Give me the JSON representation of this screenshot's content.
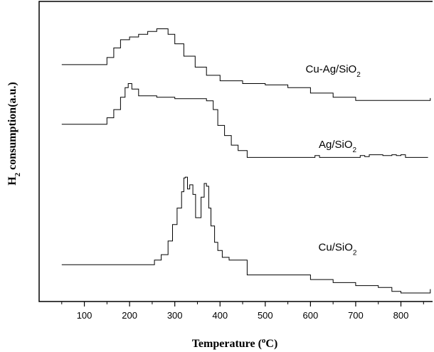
{
  "chart_data": {
    "type": "line",
    "title": "",
    "xlabel": {
      "base": "Temperature (",
      "superscript": "o",
      "tail": "C)"
    },
    "ylabel": {
      "base": "H",
      "subscript": "2",
      "tail": " consumption(a.u.)"
    },
    "xlim": [
      0,
      870
    ],
    "xticks": [
      100,
      200,
      300,
      400,
      500,
      600,
      700,
      800
    ],
    "y_units": "arbitrary",
    "ylim": [
      0,
      100
    ],
    "grid": false,
    "legend": "none",
    "colors": {
      "line": "#000000",
      "axis": "#000000",
      "background": "#ffffff"
    },
    "series": [
      {
        "label": {
          "base": "Cu-Ag/SiO",
          "subscript": "2"
        },
        "x": [
          50,
          140,
          150,
          165,
          180,
          200,
          220,
          240,
          260,
          270,
          285,
          300,
          320,
          345,
          370,
          400,
          450,
          500,
          550,
          600,
          650,
          700,
          750,
          800,
          850,
          865
        ],
        "y": [
          83.4,
          83.4,
          86,
          89.5,
          92.5,
          93.5,
          94.5,
          95.5,
          96.5,
          96.5,
          94.5,
          91,
          86.5,
          82.5,
          79.5,
          77.5,
          76.5,
          76,
          75,
          73,
          71.5,
          70.3,
          70.3,
          70.3,
          70.3,
          71.2
        ]
      },
      {
        "label": {
          "base": "Ag/SiO",
          "subscript": "2"
        },
        "x": [
          50,
          140,
          150,
          165,
          180,
          190,
          197,
          205,
          220,
          260,
          300,
          360,
          370,
          385,
          395,
          410,
          425,
          440,
          460,
          560,
          600,
          610,
          620,
          700,
          710,
          720,
          730,
          760,
          780,
          790,
          800,
          810,
          860
        ],
        "y": [
          61.6,
          61.6,
          64,
          67,
          71.5,
          75,
          76.5,
          74.5,
          72,
          71.5,
          71,
          71,
          70.2,
          67,
          61.2,
          57.5,
          54,
          52,
          49.5,
          49.5,
          49.5,
          50.2,
          49.5,
          49.5,
          50.2,
          49.8,
          50.5,
          50.2,
          50.5,
          50.2,
          50.5,
          49.5,
          49.5
        ]
      },
      {
        "label": {
          "base": "Cu/SiO",
          "subscript": "2"
        },
        "x": [
          50,
          240,
          255,
          270,
          285,
          295,
          305,
          315,
          320,
          323,
          328,
          333,
          340,
          346,
          352,
          358,
          365,
          370,
          375,
          380,
          388,
          395,
          405,
          420,
          460,
          550,
          600,
          650,
          700,
          750,
          780,
          800,
          860,
          865
        ],
        "y": [
          10.3,
          10.3,
          12,
          14,
          19,
          25,
          31,
          37,
          42,
          42.3,
          38,
          39.5,
          36,
          27.5,
          27.5,
          35,
          40,
          39,
          31,
          24.5,
          18.5,
          15.5,
          13,
          12,
          6.6,
          6.6,
          4.9,
          3.8,
          2.7,
          2,
          0.6,
          0,
          0,
          1.4
        ]
      }
    ],
    "series_label_positions": [
      {
        "x": 650,
        "y": 80.5
      },
      {
        "x": 660,
        "y": 53
      },
      {
        "x": 660,
        "y": 15.5
      }
    ]
  }
}
